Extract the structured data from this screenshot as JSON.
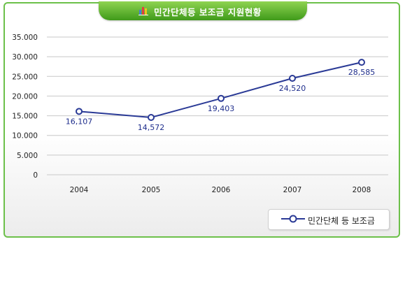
{
  "title": "민간단체등 보조금 지원현황",
  "chart_data": {
    "type": "line",
    "title": "민간단체등 보조금 지원현황",
    "categories": [
      "2004",
      "2005",
      "2006",
      "2007",
      "2008"
    ],
    "series": [
      {
        "name": "민간단체 등 보조금",
        "values": [
          16107,
          14572,
          19403,
          24520,
          28585
        ],
        "labels": [
          "16,107",
          "14,572",
          "19,403",
          "24,520",
          "28,585"
        ]
      }
    ],
    "yticks": [
      "35.000",
      "30.000",
      "25.000",
      "20.000",
      "15.000",
      "10.000",
      "5.000",
      "0"
    ],
    "ytick_values": [
      35000,
      30000,
      25000,
      20000,
      15000,
      10000,
      5000,
      0
    ],
    "ylim": [
      0,
      35000
    ],
    "xlabel": "",
    "ylabel": "",
    "grid": true,
    "legend_position": "bottom-right"
  },
  "colors": {
    "line": "#2a3a96",
    "frame": "#6cc04a",
    "title_bg": "#52ad2a",
    "grid": "#c8c8c8"
  }
}
